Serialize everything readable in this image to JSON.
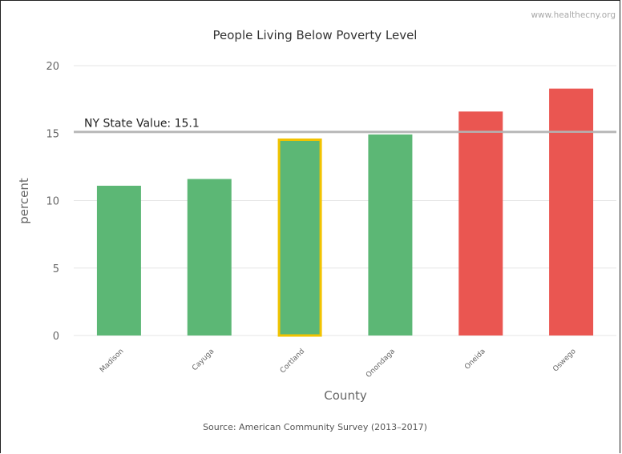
{
  "watermark": "www.healthecny.org",
  "source": "Source: American Community Survey (2013–2017)",
  "colors": {
    "below": "#5cb775",
    "above": "#ea5651",
    "highlight_border": "#f2c300",
    "reference_line": "#b3b3b3",
    "grid": "#e6e6e6"
  },
  "chart_data": {
    "type": "bar",
    "title": "People Living Below Poverty Level",
    "xlabel": "County",
    "ylabel": "percent",
    "categories": [
      "Madison",
      "Cayuga",
      "Cortland",
      "Onondaga",
      "Oneida",
      "Oswego"
    ],
    "values": [
      11.1,
      11.6,
      14.6,
      14.9,
      16.6,
      18.3
    ],
    "ylim": [
      0,
      20
    ],
    "yticks": [
      0,
      5,
      10,
      15,
      20
    ],
    "highlighted_category": "Cortland",
    "grid": true,
    "reference_line": {
      "value": 15.1,
      "label": "NY State Value: 15.1"
    }
  }
}
